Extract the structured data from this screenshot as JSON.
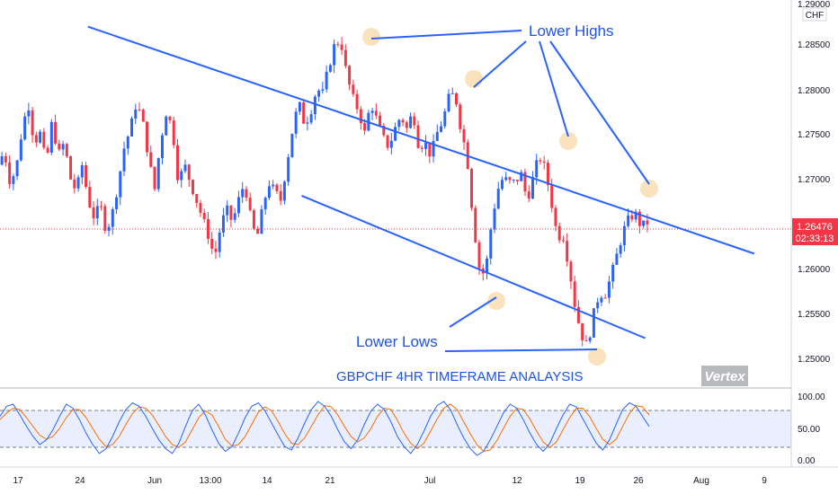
{
  "chart_data": {
    "type": "candlestick",
    "symbol_currency": "CHF",
    "title": "GBPCHF 4HR TIMEFRAME ANALAYSIS",
    "watermark": "Vertex",
    "price_axis": {
      "ylim": [
        1.247,
        1.2905
      ],
      "ticks": [
        "1.29000",
        "1.28500",
        "1.28000",
        "1.27500",
        "1.27000",
        "1.26000",
        "1.25500",
        "1.25000"
      ]
    },
    "last_price": {
      "value": "1.26476",
      "countdown": "02:33:13",
      "color": "#f23645"
    },
    "x_axis_ticks": [
      "17",
      "24",
      "Jun",
      "13:00",
      "14",
      "21",
      "Jul",
      "12",
      "19",
      "26",
      "Aug",
      "9"
    ],
    "annotations": {
      "lower_highs": "Lower Highs",
      "lower_lows": "Lower Lows"
    },
    "trendlines": [
      {
        "name": "upper-trendline",
        "from": [
          1.2875,
          0.105
        ],
        "to": [
          1.262,
          0.9
        ]
      },
      {
        "name": "lower-trendline",
        "from": [
          1.2685,
          0.36
        ],
        "to": [
          1.2525,
          0.77
        ]
      }
    ],
    "price_points": [
      1.272,
      1.2735,
      1.27,
      1.2715,
      1.276,
      1.279,
      1.2745,
      1.2755,
      1.272,
      1.277,
      1.273,
      1.2745,
      1.2705,
      1.269,
      1.272,
      1.268,
      1.266,
      1.2675,
      1.2645,
      1.2665,
      1.27,
      1.274,
      1.276,
      1.279,
      1.277,
      1.273,
      1.269,
      1.2745,
      1.278,
      1.276,
      1.27,
      1.272,
      1.27,
      1.268,
      1.266,
      1.264,
      1.2615,
      1.265,
      1.267,
      1.2655,
      1.268,
      1.27,
      1.266,
      1.2635,
      1.267,
      1.27,
      1.269,
      1.268,
      1.272,
      1.276,
      1.279,
      1.2765,
      1.278,
      1.2805,
      1.28,
      1.283,
      1.2855,
      1.286,
      1.282,
      1.2795,
      1.278,
      1.2755,
      1.279,
      1.277,
      1.275,
      1.274,
      1.276,
      1.2775,
      1.276,
      1.278,
      1.274,
      1.2745,
      1.273,
      1.2755,
      1.277,
      1.2795,
      1.28,
      1.276,
      1.273,
      1.266,
      1.2605,
      1.2595,
      1.265,
      1.269,
      1.2705,
      1.27,
      1.27,
      1.271,
      1.268,
      1.2705,
      1.273,
      1.2715,
      1.268,
      1.264,
      1.264,
      1.2605,
      1.256,
      1.253,
      1.2515,
      1.255,
      1.2575,
      1.2575,
      1.2595,
      1.262,
      1.2645,
      1.266,
      1.2665,
      1.265,
      1.2655
    ],
    "oscillator": {
      "levels": [
        "100.00",
        "50.00",
        "0.00"
      ],
      "band": [
        80,
        20
      ],
      "k_line_color": "#2962ff",
      "d_line_color": "#ff6d00",
      "k_values": [
        70,
        85,
        88,
        72,
        55,
        40,
        28,
        35,
        50,
        70,
        88,
        82,
        65,
        45,
        28,
        15,
        22,
        40,
        62,
        80,
        90,
        85,
        70,
        52,
        35,
        22,
        15,
        30,
        55,
        78,
        88,
        72,
        50,
        30,
        18,
        25,
        45,
        68,
        85,
        90,
        78,
        60,
        42,
        25,
        20,
        38,
        60,
        80,
        92,
        85,
        70,
        50,
        32,
        22,
        35,
        58,
        78,
        88,
        80,
        62,
        40,
        25,
        15,
        28,
        48,
        70,
        86,
        92,
        80,
        58,
        38,
        22,
        12,
        18,
        35,
        55,
        75,
        88,
        82,
        65,
        45,
        28,
        18,
        30,
        52,
        72,
        88,
        84,
        66,
        48,
        30,
        20,
        35,
        58,
        80,
        90,
        85,
        70,
        55
      ],
      "d_values": [
        65,
        75,
        82,
        80,
        68,
        55,
        42,
        36,
        40,
        52,
        68,
        80,
        80,
        68,
        52,
        36,
        25,
        28,
        40,
        58,
        74,
        84,
        82,
        72,
        56,
        40,
        28,
        24,
        32,
        50,
        68,
        78,
        72,
        55,
        36,
        26,
        28,
        40,
        58,
        76,
        84,
        78,
        62,
        44,
        30,
        28,
        38,
        55,
        72,
        86,
        84,
        72,
        55,
        40,
        32,
        38,
        52,
        70,
        82,
        80,
        64,
        45,
        30,
        22,
        30,
        48,
        66,
        82,
        88,
        80,
        62,
        44,
        28,
        18,
        20,
        34,
        52,
        70,
        82,
        80,
        66,
        48,
        32,
        24,
        32,
        50,
        68,
        82,
        82,
        70,
        52,
        36,
        28,
        36,
        55,
        74,
        86,
        84,
        72
      ]
    }
  }
}
